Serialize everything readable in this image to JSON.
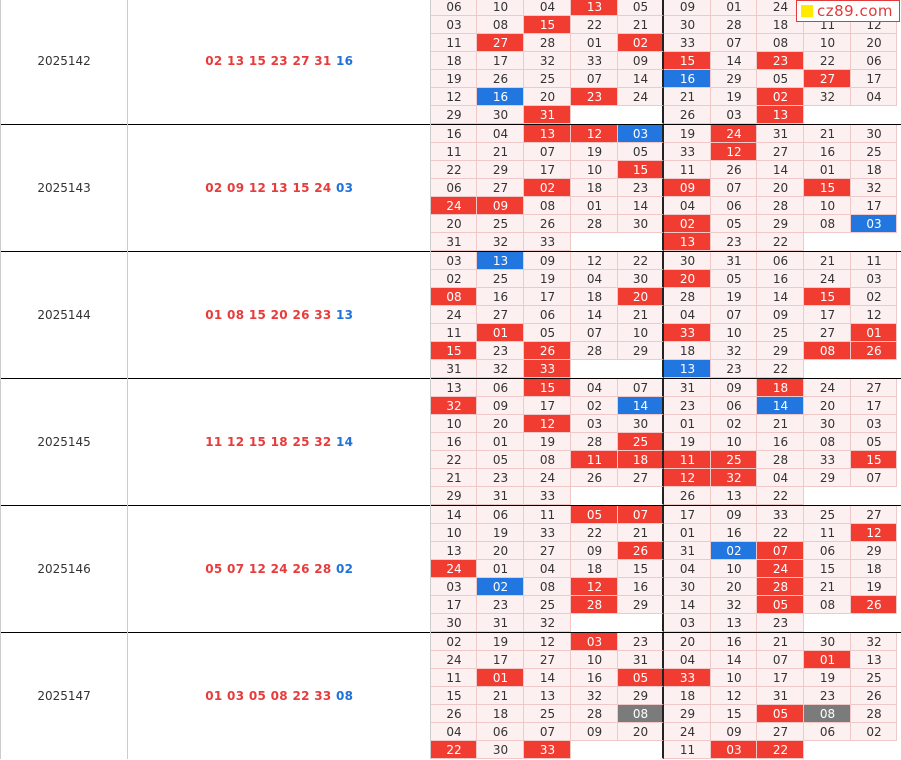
{
  "logo": {
    "text": "cz89.com"
  },
  "colors": {
    "red": "#f13c32",
    "blue": "#2176e0",
    "gray": "#7b7b7b",
    "cell_bg": "#fdf0f0"
  },
  "rows": [
    {
      "period": "2025142",
      "reds": [
        "02",
        "13",
        "15",
        "23",
        "27",
        "31"
      ],
      "blue": "16",
      "cells": [
        [
          "06",
          "10",
          "04",
          "13r",
          "05",
          "09",
          "01",
          "24",
          "",
          ""
        ],
        [
          "03",
          "08",
          "15r",
          "22",
          "21",
          "30",
          "28",
          "18",
          "11",
          "12"
        ],
        [
          "11",
          "27r",
          "28",
          "01",
          "02r",
          "33",
          "07",
          "08",
          "10",
          "20"
        ],
        [
          "18",
          "17",
          "32",
          "33",
          "09",
          "15r",
          "14",
          "23r",
          "22",
          "06"
        ],
        [
          "19",
          "26",
          "25",
          "07",
          "14",
          "16b",
          "29",
          "05",
          "27r",
          "17"
        ],
        [
          "12",
          "16b",
          "20",
          "23r",
          "24",
          "21",
          "19",
          "02r",
          "32",
          "04"
        ],
        [
          "29",
          "30",
          "31r",
          "",
          "",
          "26",
          "03",
          "13r",
          "",
          ""
        ]
      ]
    },
    {
      "period": "2025143",
      "reds": [
        "02",
        "09",
        "12",
        "13",
        "15",
        "24"
      ],
      "blue": "03",
      "cells": [
        [
          "16",
          "04",
          "13r",
          "12r",
          "03b",
          "19",
          "24r",
          "31",
          "21",
          "30"
        ],
        [
          "11",
          "21",
          "07",
          "19",
          "05",
          "33",
          "12r",
          "27",
          "16",
          "25"
        ],
        [
          "22",
          "29",
          "17",
          "10",
          "15r",
          "11",
          "26",
          "14",
          "01",
          "18"
        ],
        [
          "06",
          "27",
          "02r",
          "18",
          "23",
          "09r",
          "07",
          "20",
          "15r",
          "32"
        ],
        [
          "24r",
          "09r",
          "08",
          "01",
          "14",
          "04",
          "06",
          "28",
          "10",
          "17"
        ],
        [
          "20",
          "25",
          "26",
          "28",
          "30",
          "02r",
          "05",
          "29",
          "08",
          "03b"
        ],
        [
          "31",
          "32",
          "33",
          "",
          "",
          "13r",
          "23",
          "22",
          "",
          ""
        ]
      ]
    },
    {
      "period": "2025144",
      "reds": [
        "01",
        "08",
        "15",
        "20",
        "26",
        "33"
      ],
      "blue": "13",
      "cells": [
        [
          "03",
          "13b",
          "09",
          "12",
          "22",
          "30",
          "31",
          "06",
          "21",
          "11"
        ],
        [
          "02",
          "25",
          "19",
          "04",
          "30",
          "20r",
          "05",
          "16",
          "24",
          "03"
        ],
        [
          "08r",
          "16",
          "17",
          "18",
          "20r",
          "28",
          "19",
          "14",
          "15r",
          "02"
        ],
        [
          "24",
          "27",
          "06",
          "14",
          "21",
          "04",
          "07",
          "09",
          "17",
          "12"
        ],
        [
          "11",
          "01r",
          "05",
          "07",
          "10",
          "33r",
          "10",
          "25",
          "27",
          "01r"
        ],
        [
          "15r",
          "23",
          "26r",
          "28",
          "29",
          "18",
          "32",
          "29",
          "08r",
          "26r"
        ],
        [
          "31",
          "32",
          "33r",
          "",
          "",
          "13b",
          "23",
          "22",
          "",
          ""
        ]
      ]
    },
    {
      "period": "2025145",
      "reds": [
        "11",
        "12",
        "15",
        "18",
        "25",
        "32"
      ],
      "blue": "14",
      "cells": [
        [
          "13",
          "06",
          "15r",
          "04",
          "07",
          "31",
          "09",
          "18r",
          "24",
          "27"
        ],
        [
          "32r",
          "09",
          "17",
          "02",
          "14b",
          "23",
          "06",
          "14b",
          "20",
          "17"
        ],
        [
          "10",
          "20",
          "12r",
          "03",
          "30",
          "01",
          "02",
          "21",
          "30",
          "03"
        ],
        [
          "16",
          "01",
          "19",
          "28",
          "25r",
          "19",
          "10",
          "16",
          "08",
          "05"
        ],
        [
          "22",
          "05",
          "08",
          "11r",
          "18r",
          "11r",
          "25r",
          "28",
          "33",
          "15r"
        ],
        [
          "21",
          "23",
          "24",
          "26",
          "27",
          "12r",
          "32r",
          "04",
          "29",
          "07"
        ],
        [
          "29",
          "31",
          "33",
          "",
          "",
          "26",
          "13",
          "22",
          "",
          ""
        ]
      ]
    },
    {
      "period": "2025146",
      "reds": [
        "05",
        "07",
        "12",
        "24",
        "26",
        "28"
      ],
      "blue": "02",
      "cells": [
        [
          "14",
          "06",
          "11",
          "05r",
          "07r",
          "17",
          "09",
          "33",
          "25",
          "27"
        ],
        [
          "10",
          "19",
          "33",
          "22",
          "21",
          "01",
          "16",
          "22",
          "11",
          "12r"
        ],
        [
          "13",
          "20",
          "27",
          "09",
          "26r",
          "31",
          "02b",
          "07r",
          "06",
          "29"
        ],
        [
          "24r",
          "01",
          "04",
          "18",
          "15",
          "04",
          "10",
          "24r",
          "15",
          "18"
        ],
        [
          "03",
          "02b",
          "08",
          "12r",
          "16",
          "30",
          "20",
          "28r",
          "21",
          "19"
        ],
        [
          "17",
          "23",
          "25",
          "28r",
          "29",
          "14",
          "32",
          "05r",
          "08",
          "26r"
        ],
        [
          "30",
          "31",
          "32",
          "",
          "",
          "03",
          "13",
          "23",
          "",
          ""
        ]
      ]
    },
    {
      "period": "2025147",
      "reds": [
        "01",
        "03",
        "05",
        "08",
        "22",
        "33"
      ],
      "blue": "08",
      "cells": [
        [
          "02",
          "19",
          "12",
          "03r",
          "23",
          "20",
          "16",
          "21",
          "30",
          "32"
        ],
        [
          "24",
          "17",
          "27",
          "10",
          "31",
          "04",
          "14",
          "07",
          "01r",
          "13"
        ],
        [
          "11",
          "01r",
          "14",
          "16",
          "05r",
          "33r",
          "10",
          "17",
          "19",
          "25"
        ],
        [
          "15",
          "21",
          "13",
          "32",
          "29",
          "18",
          "12",
          "31",
          "23",
          "26"
        ],
        [
          "26",
          "18",
          "25",
          "28",
          "08g",
          "29",
          "15",
          "05r",
          "08g",
          "28"
        ],
        [
          "04",
          "06",
          "07",
          "09",
          "20",
          "24",
          "09",
          "27",
          "06",
          "02"
        ],
        [
          "22r",
          "30",
          "33r",
          "",
          "",
          "11",
          "03r",
          "22r",
          "",
          ""
        ]
      ]
    }
  ]
}
